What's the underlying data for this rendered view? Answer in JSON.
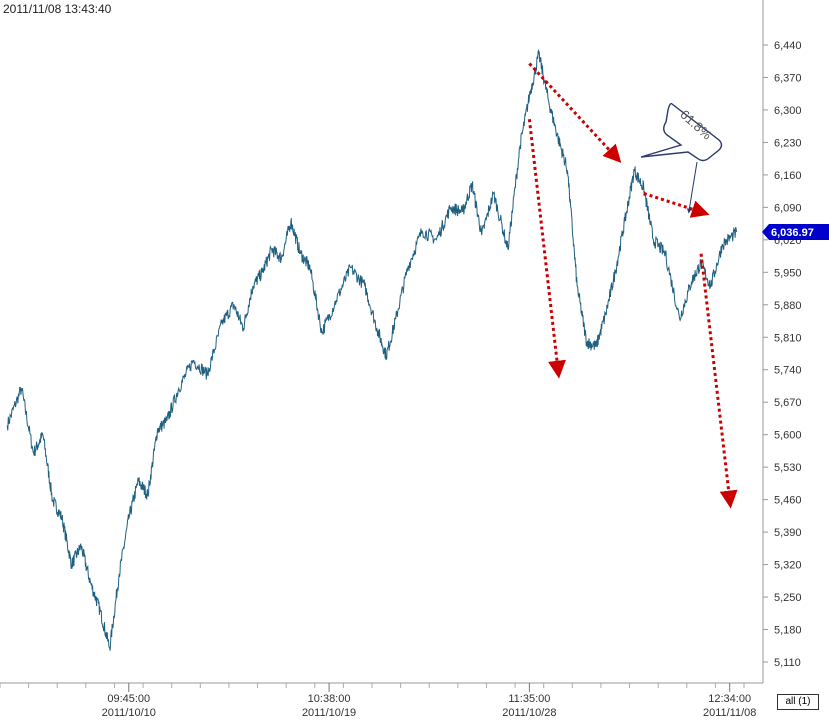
{
  "header": {
    "timestamp": "2011/11/08 13:43:40"
  },
  "controls": {
    "range_button_label": "all (1)"
  },
  "chart_data": {
    "type": "line",
    "series": [
      {
        "color": "#1f5f80",
        "x": [
          "2011/10/04",
          "2011/10/04",
          "2011/10/05",
          "2011/10/05",
          "2011/10/05",
          "2011/10/06",
          "2011/10/06",
          "2011/10/06",
          "2011/10/07",
          "2011/10/07",
          "2011/10/07",
          "2011/10/10",
          "2011/10/10",
          "2011/10/10",
          "2011/10/11",
          "2011/10/11",
          "2011/10/11",
          "2011/10/12",
          "2011/10/12",
          "2011/10/13",
          "2011/10/13",
          "2011/10/14",
          "2011/10/14",
          "2011/10/14",
          "2011/10/17",
          "2011/10/17",
          "2011/10/17",
          "2011/10/18",
          "2011/10/18",
          "2011/10/18",
          "2011/10/19",
          "2011/10/19",
          "2011/10/20",
          "2011/10/20",
          "2011/10/21",
          "2011/10/21",
          "2011/10/21",
          "2011/10/24",
          "2011/10/24",
          "2011/10/25",
          "2011/10/25",
          "2011/10/26",
          "2011/10/26",
          "2011/10/26",
          "2011/10/27",
          "2011/10/27",
          "2011/10/28",
          "2011/10/28",
          "2011/10/28",
          "2011/10/31",
          "2011/10/31",
          "2011/10/31",
          "2011/11/01",
          "2011/11/01",
          "2011/11/01",
          "2011/11/02",
          "2011/11/02",
          "2011/11/02",
          "2011/11/03",
          "2011/11/03",
          "2011/11/03",
          "2011/11/04",
          "2011/11/04",
          "2011/11/07",
          "2011/11/07",
          "2011/11/07",
          "2011/11/08",
          "2011/11/08"
        ],
        "y": [
          5620,
          5700,
          5560,
          5600,
          5460,
          5420,
          5320,
          5360,
          5280,
          5220,
          5140,
          5300,
          5420,
          5500,
          5470,
          5610,
          5630,
          5700,
          5760,
          5730,
          5840,
          5880,
          5830,
          5920,
          5950,
          6000,
          5980,
          6060,
          5990,
          5960,
          5820,
          5890,
          5960,
          5920,
          5830,
          5770,
          5850,
          5960,
          6040,
          6020,
          6090,
          6080,
          6140,
          6030,
          6120,
          6000,
          6220,
          6330,
          6420,
          6320,
          6240,
          6170,
          5920,
          5800,
          5790,
          5860,
          5950,
          6060,
          6170,
          6130,
          6020,
          5990,
          5850,
          5930,
          5970,
          5920,
          6010,
          6036.97
        ]
      }
    ],
    "y_ticks": [
      "6,440",
      "6,370",
      "6,300",
      "6,230",
      "6,160",
      "6,090",
      "6,020",
      "5,950",
      "5,880",
      "5,810",
      "5,740",
      "5,670",
      "5,600",
      "5,530",
      "5,460",
      "5,390",
      "5,320",
      "5,250",
      "5,180",
      "5,110"
    ],
    "y_tick_values": [
      6440,
      6370,
      6300,
      6230,
      6160,
      6090,
      6020,
      5950,
      5880,
      5810,
      5740,
      5670,
      5600,
      5530,
      5460,
      5390,
      5320,
      5250,
      5180,
      5110
    ],
    "ylim": [
      5090,
      6480
    ],
    "x_ticks": [
      {
        "time": "09:45:00",
        "date": "2011/10/10"
      },
      {
        "time": "10:38:00",
        "date": "2011/10/19"
      },
      {
        "time": "11:35:00",
        "date": "2011/10/28"
      },
      {
        "time": "12:34:00",
        "date": "2011/11/08"
      }
    ],
    "last_value_label": "6,036.97",
    "last_value": 6036.97,
    "last_value_color": "#0000cc",
    "annotations": [
      {
        "kind": "dotted-arrow",
        "color": "#cc0000",
        "from": [
          "2011/10/28",
          6400
        ],
        "to": [
          "2011/11/02",
          6200
        ]
      },
      {
        "kind": "dotted-arrow",
        "color": "#cc0000",
        "from": [
          "2011/10/28",
          6280
        ],
        "to": [
          "2011/10/31",
          5740
        ]
      },
      {
        "kind": "dotted-arrow",
        "color": "#cc0000",
        "from": [
          "2011/11/03",
          6120
        ],
        "to": [
          "2011/11/07",
          6080
        ]
      },
      {
        "kind": "dotted-arrow",
        "color": "#cc0000",
        "from": [
          "2011/11/07",
          5990
        ],
        "to": [
          "2011/11/08",
          5460
        ]
      },
      {
        "kind": "callout",
        "text": "61.8%",
        "color": "#2a3a6a"
      }
    ],
    "grid": false
  }
}
